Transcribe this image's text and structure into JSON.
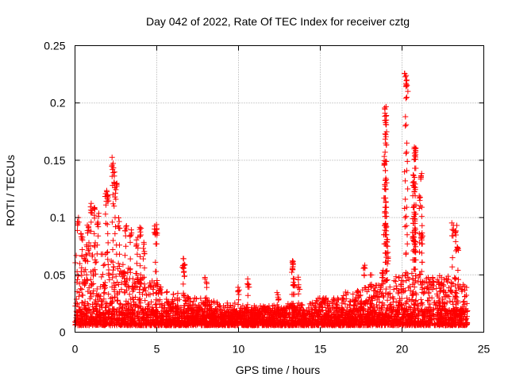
{
  "chart_data": {
    "type": "scatter",
    "title": "Day 042 of 2022, Rate Of TEC Index for receiver cztg",
    "xlabel": "GPS time / hours",
    "ylabel": "ROTI / TECUs",
    "xlim": [
      0,
      25
    ],
    "ylim": [
      0,
      0.25
    ],
    "xticks": [
      0,
      5,
      10,
      15,
      20,
      25
    ],
    "xtick_labels": [
      "0",
      "5",
      "10",
      "15",
      "20",
      "25"
    ],
    "yticks": [
      0,
      0.05,
      0.1,
      0.15,
      0.2,
      0.25
    ],
    "ytick_labels": [
      "0",
      "0.05",
      "0.1",
      "0.15",
      "0.2",
      "0.25"
    ],
    "grid": true,
    "marker": "+",
    "series": [
      {
        "name": "ROTI",
        "color": "#ff0000",
        "envelope_x": [
          0,
          0.5,
          1,
          1.5,
          2,
          2.5,
          3,
          3.5,
          4,
          4.5,
          5,
          5.5,
          6,
          6.5,
          7,
          7.5,
          8,
          8.5,
          9,
          9.5,
          10,
          10.5,
          11,
          11.5,
          12,
          12.5,
          13,
          13.5,
          14,
          14.5,
          15,
          15.5,
          16,
          16.5,
          17,
          17.5,
          18,
          18.5,
          19,
          19.5,
          20,
          20.5,
          21,
          21.5,
          22,
          22.5,
          23,
          23.5,
          24
        ],
        "envelope_y": [
          0.07,
          0.075,
          0.08,
          0.075,
          0.07,
          0.06,
          0.06,
          0.055,
          0.05,
          0.045,
          0.045,
          0.04,
          0.035,
          0.035,
          0.03,
          0.03,
          0.03,
          0.028,
          0.027,
          0.026,
          0.025,
          0.024,
          0.024,
          0.023,
          0.023,
          0.024,
          0.025,
          0.025,
          0.026,
          0.028,
          0.03,
          0.03,
          0.032,
          0.035,
          0.035,
          0.038,
          0.04,
          0.045,
          0.045,
          0.048,
          0.05,
          0.055,
          0.055,
          0.05,
          0.05,
          0.05,
          0.05,
          0.045,
          0.04
        ],
        "bursts": [
          {
            "x": 0.2,
            "y": 0.1
          },
          {
            "x": 0.4,
            "y": 0.09
          },
          {
            "x": 0.8,
            "y": 0.095
          },
          {
            "x": 1.0,
            "y": 0.115
          },
          {
            "x": 1.2,
            "y": 0.11
          },
          {
            "x": 1.4,
            "y": 0.105
          },
          {
            "x": 1.9,
            "y": 0.125
          },
          {
            "x": 2.0,
            "y": 0.12
          },
          {
            "x": 2.3,
            "y": 0.153
          },
          {
            "x": 2.4,
            "y": 0.14
          },
          {
            "x": 2.5,
            "y": 0.13
          },
          {
            "x": 2.7,
            "y": 0.1
          },
          {
            "x": 3.1,
            "y": 0.095
          },
          {
            "x": 3.4,
            "y": 0.09
          },
          {
            "x": 3.8,
            "y": 0.085
          },
          {
            "x": 4.0,
            "y": 0.092
          },
          {
            "x": 4.2,
            "y": 0.08
          },
          {
            "x": 4.9,
            "y": 0.097
          },
          {
            "x": 5.0,
            "y": 0.096
          },
          {
            "x": 6.6,
            "y": 0.065
          },
          {
            "x": 6.7,
            "y": 0.06
          },
          {
            "x": 8.0,
            "y": 0.05
          },
          {
            "x": 10.0,
            "y": 0.04
          },
          {
            "x": 10.6,
            "y": 0.047
          },
          {
            "x": 12.4,
            "y": 0.037
          },
          {
            "x": 13.3,
            "y": 0.066
          },
          {
            "x": 13.3,
            "y": 0.062
          },
          {
            "x": 13.4,
            "y": 0.052
          },
          {
            "x": 13.7,
            "y": 0.049
          },
          {
            "x": 17.7,
            "y": 0.06
          },
          {
            "x": 18.1,
            "y": 0.05
          },
          {
            "x": 18.8,
            "y": 0.055
          },
          {
            "x": 19.0,
            "y": 0.197
          },
          {
            "x": 19.0,
            "y": 0.19
          },
          {
            "x": 19.0,
            "y": 0.175
          },
          {
            "x": 18.9,
            "y": 0.155
          },
          {
            "x": 19.0,
            "y": 0.135
          },
          {
            "x": 19.0,
            "y": 0.115
          },
          {
            "x": 19.0,
            "y": 0.1
          },
          {
            "x": 19.1,
            "y": 0.085
          },
          {
            "x": 19.1,
            "y": 0.07
          },
          {
            "x": 20.2,
            "y": 0.226
          },
          {
            "x": 20.3,
            "y": 0.221
          },
          {
            "x": 20.8,
            "y": 0.166
          },
          {
            "x": 20.8,
            "y": 0.162
          },
          {
            "x": 20.7,
            "y": 0.138
          },
          {
            "x": 20.8,
            "y": 0.13
          },
          {
            "x": 20.7,
            "y": 0.11
          },
          {
            "x": 20.8,
            "y": 0.1
          },
          {
            "x": 20.7,
            "y": 0.09
          },
          {
            "x": 20.8,
            "y": 0.08
          },
          {
            "x": 21.2,
            "y": 0.145
          },
          {
            "x": 21.1,
            "y": 0.12
          },
          {
            "x": 21.2,
            "y": 0.09
          },
          {
            "x": 23.1,
            "y": 0.096
          },
          {
            "x": 23.3,
            "y": 0.094
          },
          {
            "x": 23.4,
            "y": 0.08
          }
        ]
      }
    ]
  }
}
